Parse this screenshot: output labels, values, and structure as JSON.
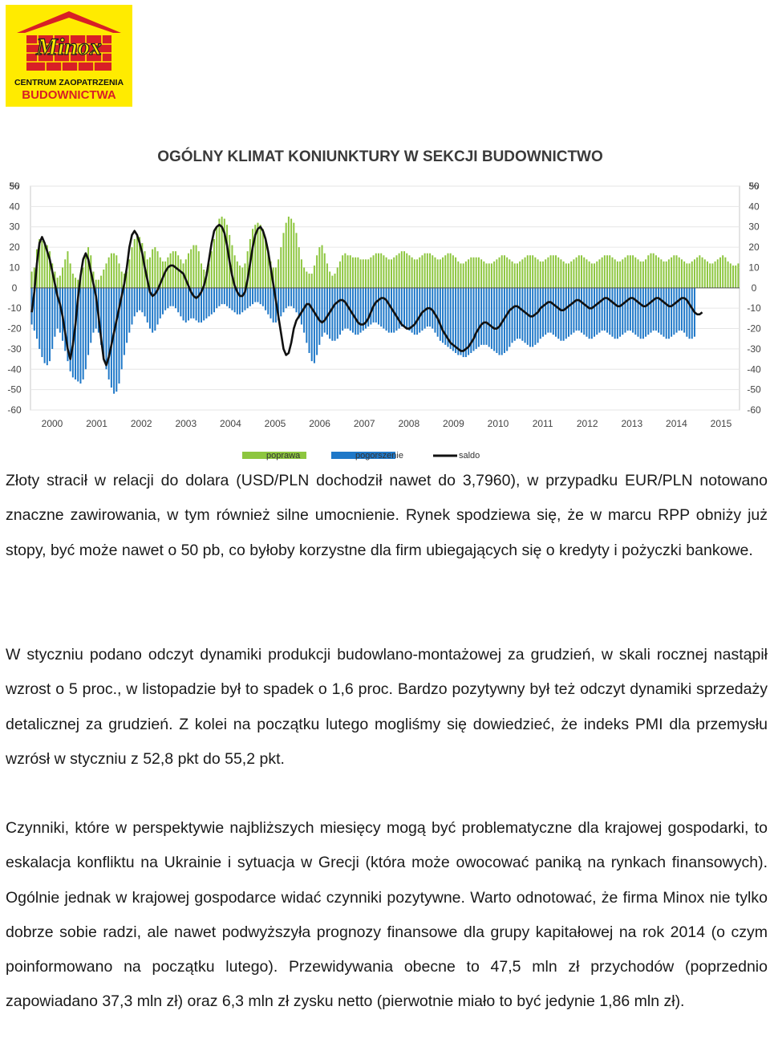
{
  "logo": {
    "brand": "Minox",
    "line1": "CENTRUM ZAOPATRZENIA",
    "line2": "BUDOWNICTWA",
    "colors": {
      "background": "#ffeb00",
      "red": "#d81f26"
    }
  },
  "chart_data": {
    "type": "bar",
    "title": "OGÓLNY KLIMAT KONIUNKTURY W SEKCJI BUDOWNICTWO",
    "y_unit_left": "%",
    "y_unit_right": "%",
    "ylim": [
      -60,
      50
    ],
    "yticks": [
      50,
      40,
      30,
      20,
      10,
      0,
      -10,
      -20,
      -30,
      -40,
      -50,
      -60
    ],
    "x_labels": [
      "2000",
      "2001",
      "2002",
      "2003",
      "2004",
      "2005",
      "2006",
      "2007",
      "2008",
      "2009",
      "2010",
      "2011",
      "2012",
      "2013",
      "2014",
      "2015"
    ],
    "grid": true,
    "legend_position": "bottom",
    "legend": [
      {
        "name": "poprawa",
        "color": "#8dc63f",
        "kind": "bar"
      },
      {
        "name": "pogorszenie",
        "color": "#1f78c8",
        "kind": "bar"
      },
      {
        "name": "saldo",
        "color": "#111111",
        "kind": "line"
      }
    ],
    "series": [
      {
        "name": "poprawa",
        "values": [
          8,
          10,
          19,
          24,
          23,
          22,
          21,
          18,
          12,
          8,
          5,
          6,
          10,
          14,
          18,
          12,
          7,
          5,
          4,
          5,
          10,
          16,
          20,
          16,
          8,
          4,
          4,
          6,
          9,
          12,
          15,
          17,
          17,
          16,
          12,
          8,
          7,
          8,
          14,
          20,
          24,
          26,
          25,
          22,
          18,
          14,
          15,
          19,
          20,
          18,
          15,
          13,
          13,
          15,
          17,
          18,
          18,
          16,
          14,
          12,
          14,
          17,
          19,
          21,
          21,
          18,
          12,
          9,
          8,
          12,
          18,
          24,
          30,
          34,
          35,
          34,
          31,
          26,
          21,
          16,
          13,
          11,
          10,
          12,
          18,
          24,
          29,
          31,
          32,
          31,
          29,
          24,
          18,
          13,
          10,
          10,
          14,
          20,
          27,
          32,
          35,
          34,
          32,
          27,
          20,
          14,
          10,
          8,
          7,
          7,
          11,
          16,
          20,
          21,
          17,
          12,
          8,
          6,
          7,
          10,
          13,
          16,
          17,
          16,
          16,
          15,
          15,
          15,
          14,
          14,
          14,
          14,
          15,
          16,
          17,
          17,
          17,
          16,
          15,
          14,
          14,
          15,
          16,
          17,
          18,
          18,
          17,
          16,
          15,
          14,
          14,
          15,
          16,
          17,
          17,
          17,
          16,
          15,
          14,
          14,
          15,
          16,
          17,
          17,
          16,
          15,
          13,
          12,
          12,
          13,
          14,
          15,
          15,
          15,
          15,
          14,
          13,
          12,
          12,
          12,
          13,
          14,
          15,
          16,
          16,
          15,
          14,
          13,
          12,
          12,
          13,
          14,
          15,
          16,
          16,
          16,
          15,
          14,
          13,
          13,
          14,
          15,
          16,
          16,
          16,
          15,
          14,
          13,
          12,
          12,
          13,
          14,
          15,
          16,
          16,
          15,
          14,
          13,
          12,
          12,
          13,
          14,
          15,
          16,
          16,
          16,
          15,
          14,
          13,
          13,
          14,
          15,
          16,
          16,
          16,
          15,
          14,
          13,
          13,
          14,
          16,
          17,
          17,
          16,
          15,
          14,
          13,
          13,
          14,
          15,
          16,
          16,
          15,
          14,
          13,
          12,
          12,
          13,
          14,
          15,
          16,
          15,
          14,
          13,
          12,
          12,
          13,
          14,
          15,
          16,
          15,
          13,
          12,
          11,
          11,
          12
        ]
      },
      {
        "name": "pogorszenie",
        "values": [
          -18,
          -21,
          -25,
          -30,
          -34,
          -37,
          -38,
          -36,
          -30,
          -24,
          -20,
          -22,
          -26,
          -31,
          -36,
          -41,
          -44,
          -45,
          -46,
          -47,
          -45,
          -40,
          -33,
          -27,
          -22,
          -20,
          -22,
          -28,
          -34,
          -40,
          -45,
          -49,
          -52,
          -51,
          -47,
          -40,
          -33,
          -27,
          -22,
          -18,
          -14,
          -12,
          -11,
          -12,
          -14,
          -17,
          -20,
          -22,
          -21,
          -18,
          -15,
          -13,
          -11,
          -10,
          -9,
          -9,
          -10,
          -12,
          -14,
          -16,
          -17,
          -16,
          -15,
          -15,
          -16,
          -17,
          -17,
          -16,
          -15,
          -14,
          -13,
          -12,
          -10,
          -9,
          -8,
          -8,
          -9,
          -10,
          -11,
          -12,
          -13,
          -13,
          -12,
          -11,
          -10,
          -9,
          -8,
          -7,
          -7,
          -8,
          -9,
          -11,
          -13,
          -15,
          -17,
          -17,
          -16,
          -14,
          -12,
          -10,
          -9,
          -9,
          -10,
          -12,
          -15,
          -18,
          -22,
          -27,
          -32,
          -36,
          -37,
          -33,
          -28,
          -24,
          -22,
          -23,
          -25,
          -26,
          -26,
          -25,
          -23,
          -21,
          -20,
          -20,
          -21,
          -22,
          -23,
          -23,
          -22,
          -21,
          -20,
          -19,
          -18,
          -17,
          -17,
          -18,
          -19,
          -20,
          -21,
          -22,
          -22,
          -22,
          -21,
          -20,
          -19,
          -19,
          -20,
          -21,
          -22,
          -23,
          -23,
          -22,
          -21,
          -20,
          -19,
          -19,
          -20,
          -22,
          -24,
          -26,
          -27,
          -28,
          -29,
          -30,
          -31,
          -32,
          -33,
          -33,
          -34,
          -34,
          -33,
          -32,
          -31,
          -30,
          -29,
          -28,
          -28,
          -28,
          -29,
          -30,
          -31,
          -32,
          -33,
          -33,
          -32,
          -31,
          -29,
          -27,
          -26,
          -25,
          -25,
          -26,
          -27,
          -28,
          -29,
          -29,
          -28,
          -27,
          -25,
          -24,
          -23,
          -22,
          -22,
          -23,
          -24,
          -25,
          -26,
          -26,
          -25,
          -24,
          -23,
          -22,
          -21,
          -21,
          -22,
          -23,
          -24,
          -25,
          -25,
          -24,
          -23,
          -22,
          -21,
          -21,
          -22,
          -23,
          -24,
          -25,
          -25,
          -24,
          -23,
          -22,
          -21,
          -21,
          -22,
          -23,
          -24,
          -25,
          -25,
          -24,
          -23,
          -22,
          -21,
          -21,
          -22,
          -23,
          -24,
          -25,
          -25,
          -24,
          -23,
          -22,
          -21,
          -21,
          -22,
          -24,
          -25,
          -25,
          -24
        ]
      },
      {
        "name": "saldo",
        "values": [
          -12,
          -2,
          12,
          22,
          25,
          22,
          18,
          14,
          8,
          2,
          -4,
          -8,
          -14,
          -22,
          -30,
          -35,
          -28,
          -18,
          -5,
          6,
          14,
          17,
          14,
          8,
          2,
          -4,
          -14,
          -25,
          -35,
          -38,
          -34,
          -28,
          -22,
          -16,
          -10,
          -4,
          2,
          10,
          20,
          26,
          28,
          26,
          22,
          17,
          10,
          4,
          -2,
          -4,
          -3,
          -1,
          2,
          5,
          8,
          10,
          11,
          11,
          10,
          9,
          8,
          7,
          4,
          1,
          -2,
          -4,
          -5,
          -4,
          -2,
          1,
          6,
          14,
          22,
          28,
          30,
          31,
          30,
          27,
          21,
          13,
          6,
          1,
          -2,
          -4,
          -4,
          -2,
          4,
          12,
          20,
          26,
          29,
          30,
          28,
          24,
          18,
          10,
          2,
          -6,
          -14,
          -22,
          -30,
          -33,
          -32,
          -27,
          -20,
          -16,
          -14,
          -12,
          -10,
          -8,
          -8,
          -10,
          -12,
          -14,
          -16,
          -17,
          -16,
          -14,
          -12,
          -10,
          -8,
          -7,
          -6,
          -6,
          -7,
          -9,
          -11,
          -13,
          -15,
          -17,
          -18,
          -18,
          -17,
          -15,
          -12,
          -9,
          -7,
          -6,
          -5,
          -5,
          -6,
          -8,
          -10,
          -12,
          -14,
          -16,
          -18,
          -19,
          -20,
          -20,
          -19,
          -18,
          -16,
          -14,
          -12,
          -11,
          -10,
          -10,
          -11,
          -13,
          -15,
          -18,
          -21,
          -23,
          -25,
          -27,
          -28,
          -29,
          -30,
          -31,
          -31,
          -30,
          -29,
          -27,
          -25,
          -22,
          -20,
          -18,
          -17,
          -17,
          -18,
          -19,
          -20,
          -20,
          -19,
          -17,
          -15,
          -13,
          -11,
          -10,
          -9,
          -9,
          -10,
          -11,
          -12,
          -13,
          -14,
          -14,
          -13,
          -12,
          -10,
          -9,
          -8,
          -7,
          -7,
          -8,
          -9,
          -10,
          -11,
          -11,
          -10,
          -9,
          -8,
          -7,
          -6,
          -6,
          -7,
          -8,
          -9,
          -10,
          -10,
          -9,
          -8,
          -7,
          -6,
          -5,
          -5,
          -6,
          -7,
          -8,
          -9,
          -9,
          -8,
          -7,
          -6,
          -5,
          -5,
          -6,
          -7,
          -8,
          -9,
          -9,
          -8,
          -7,
          -6,
          -5,
          -5,
          -6,
          -7,
          -8,
          -9,
          -9,
          -8,
          -7,
          -6,
          -5,
          -5,
          -6,
          -8,
          -10,
          -12,
          -13,
          -13,
          -12
        ]
      }
    ]
  },
  "paragraphs": [
    "Złoty stracił w relacji do dolara (USD/PLN dochodził nawet do 3,7960), w przypadku EUR/PLN notowano znaczne zawirowania, w tym również silne umocnienie. Rynek spodziewa się, że w marcu RPP obniży już stopy, być może nawet o 50 pb, co byłoby korzystne dla firm ubiegających się o kredyty i pożyczki bankowe.",
    "W styczniu podano odczyt dynamiki produkcji budowlano-montażowej za grudzień, w skali rocznej nastąpił wzrost o 5 proc., w listopadzie był to spadek o 1,6 proc. Bardzo pozytywny był też odczyt dynamiki sprzedaży detalicznej za grudzień. Z kolei na początku lutego mogliśmy się dowiedzieć, że indeks PMI dla przemysłu wzrósł w styczniu z 52,8 pkt do 55,2 pkt.",
    "Czynniki, które w perspektywie najbliższych miesięcy mogą być problematyczne dla krajowej gospodarki, to eskalacja konfliktu na Ukrainie i sytuacja w Grecji (która może owocować paniką na rynkach finansowych). Ogólnie jednak w krajowej gospodarce widać czynniki pozytywne. Warto odnotować, że firma Minox nie tylko dobrze sobie radzi, ale nawet podwyższyła prognozy finansowe dla grupy kapitałowej na rok 2014 (o czym poinformowano na początku lutego). Przewidywania obecne to 47,5 mln zł przychodów (poprzednio zapowiadano 37,3 mln zł) oraz 6,3 mln zł zysku netto (pierwotnie miało to być jedynie 1,86 mln zł)."
  ]
}
